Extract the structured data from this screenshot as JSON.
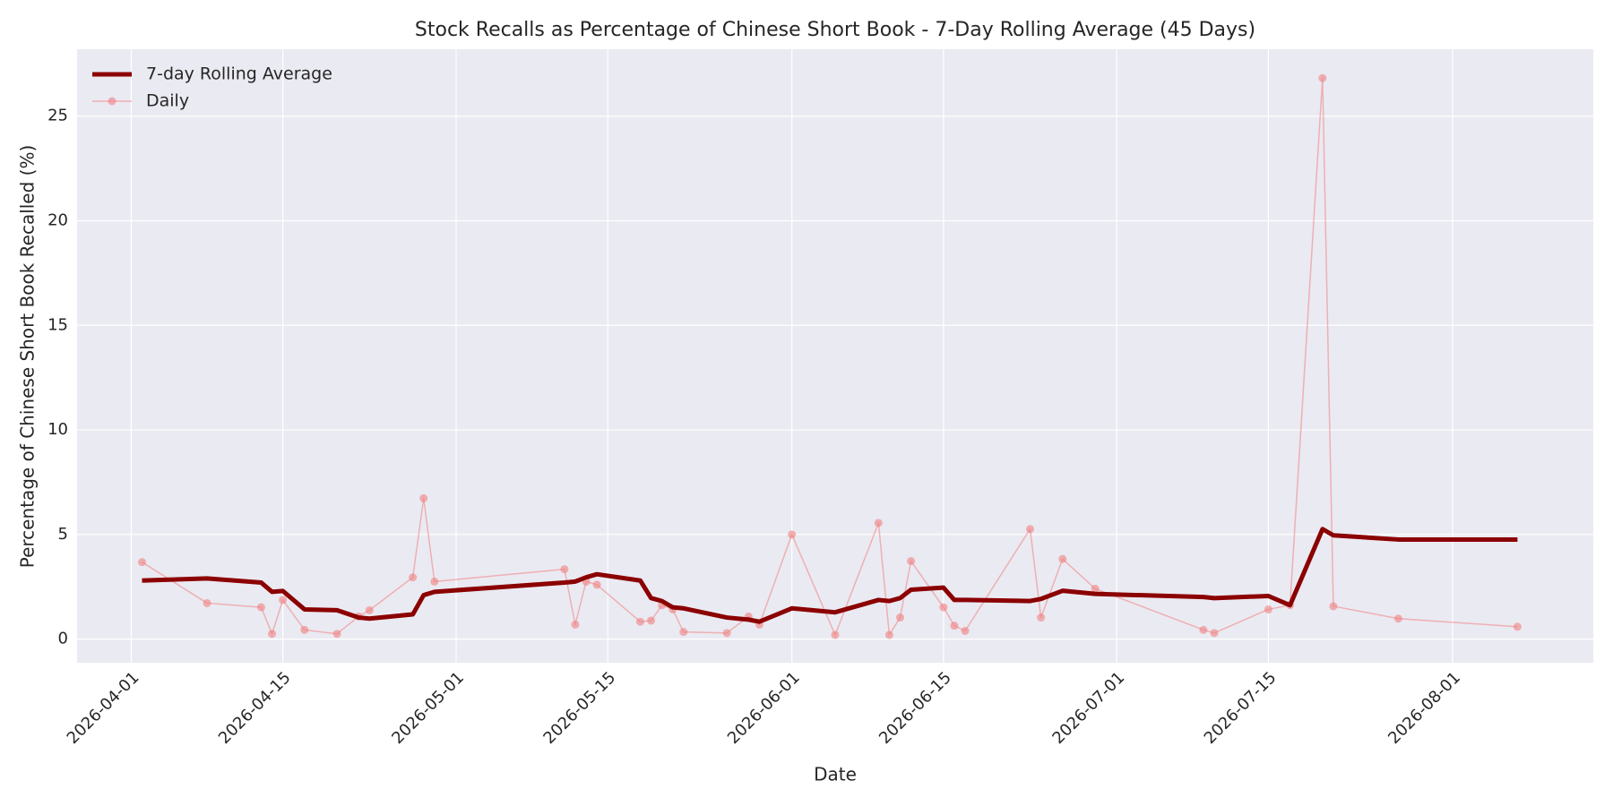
{
  "chart_data": {
    "type": "line",
    "title": "Stock Recalls as Percentage of Chinese Short Book - 7-Day Rolling Average (45 Days)",
    "x_label": "Date",
    "y_label": "Percentage of Chinese Short Book Recalled (%)",
    "x": [
      "2026-04-02",
      "2026-04-08",
      "2026-04-13",
      "2026-04-14",
      "2026-04-15",
      "2026-04-17",
      "2026-04-20",
      "2026-04-22",
      "2026-04-23",
      "2026-04-27",
      "2026-04-28",
      "2026-04-29",
      "2026-05-11",
      "2026-05-12",
      "2026-05-13",
      "2026-05-14",
      "2026-05-18",
      "2026-05-19",
      "2026-05-20",
      "2026-05-21",
      "2026-05-22",
      "2026-05-26",
      "2026-05-28",
      "2026-05-29",
      "2026-06-01",
      "2026-06-05",
      "2026-06-09",
      "2026-06-10",
      "2026-06-11",
      "2026-06-12",
      "2026-06-15",
      "2026-06-16",
      "2026-06-17",
      "2026-06-23",
      "2026-06-24",
      "2026-06-26",
      "2026-06-29",
      "2026-07-09",
      "2026-07-10",
      "2026-07-15",
      "2026-07-17",
      "2026-07-20",
      "2026-07-21",
      "2026-07-27",
      "2026-08-07"
    ],
    "series": [
      {
        "name": "7-day Rolling Average",
        "color": "#8b0000",
        "values": [
          2.8,
          2.9,
          2.7,
          2.26,
          2.3,
          1.42,
          1.38,
          1.03,
          0.98,
          1.18,
          2.1,
          2.26,
          2.7,
          2.75,
          2.95,
          3.1,
          2.8,
          1.96,
          1.82,
          1.52,
          1.47,
          1.03,
          0.93,
          0.83,
          1.47,
          1.28,
          1.87,
          1.82,
          1.96,
          2.36,
          2.46,
          1.87,
          1.87,
          1.82,
          1.92,
          2.31,
          2.16,
          2.01,
          1.96,
          2.06,
          1.62,
          5.26,
          4.96,
          4.76,
          4.76
        ]
      },
      {
        "name": "Daily",
        "color": "#f08080",
        "values": [
          3.68,
          1.72,
          1.52,
          0.25,
          1.87,
          0.44,
          0.25,
          1.08,
          1.38,
          2.95,
          6.73,
          2.75,
          3.34,
          0.69,
          2.75,
          2.6,
          0.83,
          0.88,
          1.62,
          1.42,
          0.34,
          0.29,
          1.08,
          0.69,
          5.0,
          0.2,
          5.55,
          0.2,
          1.03,
          3.73,
          1.52,
          0.64,
          0.39,
          5.26,
          1.03,
          3.83,
          2.41,
          0.44,
          0.29,
          1.42,
          1.62,
          26.82,
          1.57,
          0.98,
          0.59
        ]
      }
    ],
    "xlim": [
      "2026-03-27",
      "2026-08-14"
    ],
    "xticks": [
      "2026-04-01",
      "2026-04-15",
      "2026-05-01",
      "2026-05-15",
      "2026-06-01",
      "2026-06-15",
      "2026-07-01",
      "2026-07-15",
      "2026-08-01"
    ],
    "ylim": [
      -1.13,
      28.2
    ],
    "yticks": [
      0,
      5,
      10,
      15,
      20,
      25
    ],
    "grid": true,
    "legend": "upper left"
  }
}
